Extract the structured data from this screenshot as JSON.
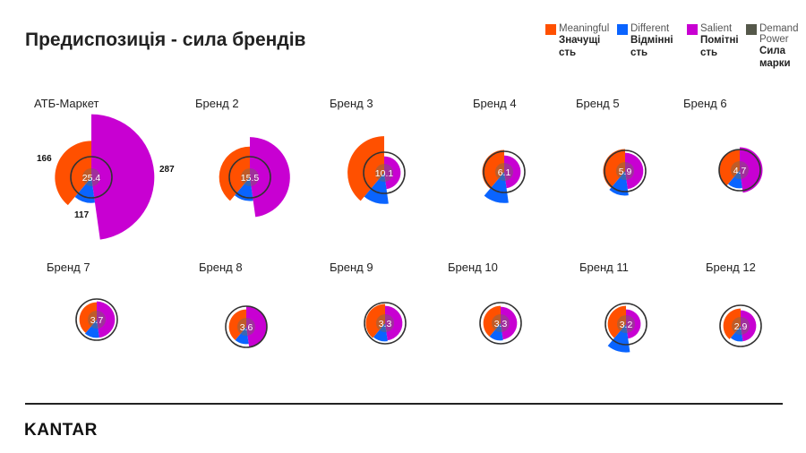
{
  "title": "Предиспозиція - сила брендів",
  "legend": [
    {
      "en": "Meaningful",
      "ua": "Значущість",
      "color": "#ff5000"
    },
    {
      "en": "Different",
      "ua": "Відмінність",
      "color": "#0a64ff"
    },
    {
      "en": "Salient",
      "ua": "Помітність",
      "color": "#c800d2"
    },
    {
      "en": "Demand Power",
      "ua": "Сила марки",
      "color": "#55584a"
    }
  ],
  "brands": [
    {
      "name": "АТБ-Маркет",
      "power": "25.4",
      "meaningful": 166,
      "different": 117,
      "salient": 287,
      "labels": {
        "meaningful": "166",
        "different": "117",
        "salient": "287"
      }
    },
    {
      "name": "Бренд 2",
      "power": "15.5",
      "meaningful": 140,
      "different": 108,
      "salient": 183
    },
    {
      "name": "Бренд 3",
      "power": "10.1",
      "meaningful": 167,
      "different": 142,
      "salient": 75
    },
    {
      "name": "Бренд 4",
      "power": "6.1",
      "meaningful": 100,
      "different": 142,
      "salient": 75
    },
    {
      "name": "Бренд 5",
      "power": "5.9",
      "meaningful": 100,
      "different": 112,
      "salient": 83
    },
    {
      "name": "Бренд 6",
      "power": "4.7",
      "meaningful": 92,
      "different": 83,
      "salient": 104
    },
    {
      "name": "Бренд 7",
      "power": "3.7",
      "meaningful": 79,
      "different": 83,
      "salient": 83
    },
    {
      "name": "Бренд 8",
      "power": "3.6",
      "meaningful": 79,
      "different": 79,
      "salient": 96
    },
    {
      "name": "Бренд 9",
      "power": "3.3",
      "meaningful": 88,
      "different": 83,
      "salient": 79
    },
    {
      "name": "Бренд 10",
      "power": "3.3",
      "meaningful": 79,
      "different": 79,
      "salient": 75
    },
    {
      "name": "Бренд 11",
      "power": "3.2",
      "meaningful": 83,
      "different": 129,
      "salient": 67
    },
    {
      "name": "Бренд 12",
      "power": "2.9",
      "meaningful": 79,
      "different": 71,
      "salient": 71
    }
  ],
  "logo": "KANTAR"
}
